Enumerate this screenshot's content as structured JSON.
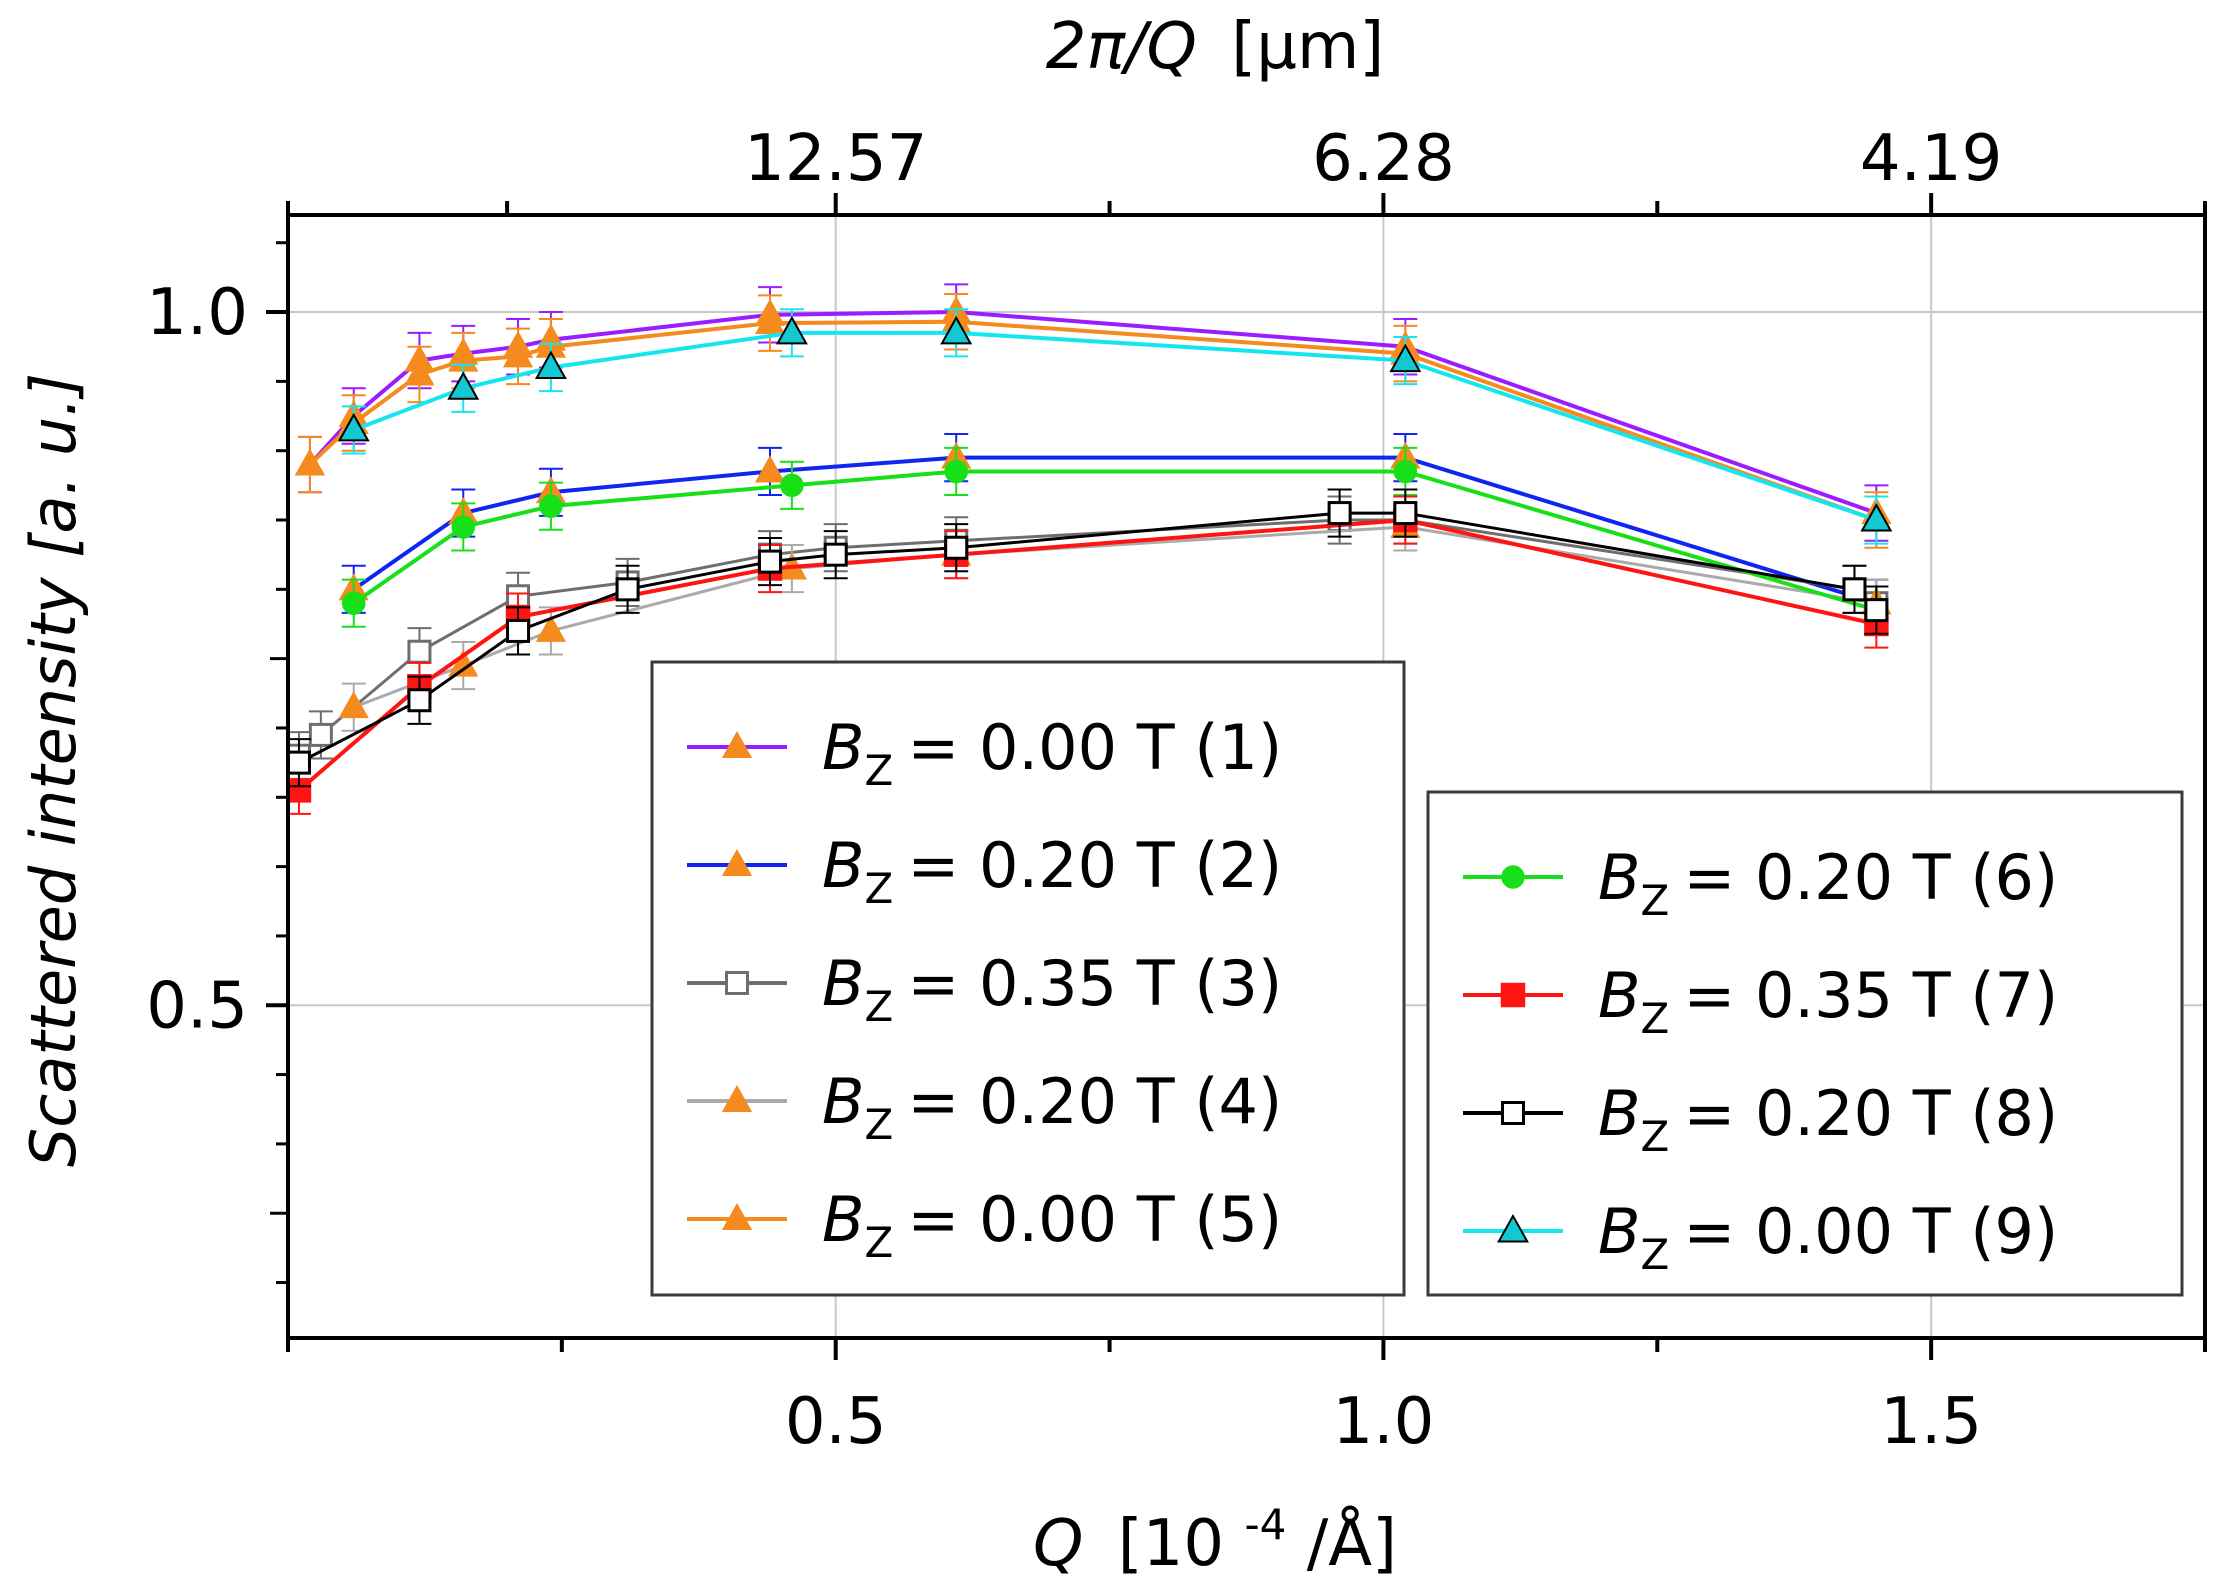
{
  "chart_data": {
    "type": "line",
    "x_top_label_var": "2π/Q",
    "x_top_label_unit": "[μm]",
    "x_bottom_label_var": "Q",
    "x_bottom_label_unit": "[10",
    "x_bottom_label_exp": "-4",
    "x_bottom_label_tail": "/Å]",
    "ylabel": "Scattered intensity [a. u.]",
    "xlim": [
      0.0,
      1.75
    ],
    "ylim": [
      0.26,
      1.07
    ],
    "y_ticks": [
      {
        "value": 1.0,
        "label": "1.0"
      },
      {
        "value": 0.5,
        "label": "0.5"
      }
    ],
    "x_ticks": [
      {
        "value": 0.5,
        "label": "0.5"
      },
      {
        "value": 1.0,
        "label": "1.0"
      },
      {
        "value": 1.5,
        "label": "1.5"
      }
    ],
    "x_top_ticks": [
      {
        "value": 0.5,
        "label": "12.57"
      },
      {
        "value": 1.0,
        "label": "6.28"
      },
      {
        "value": 1.5,
        "label": "4.19"
      }
    ],
    "grid": true,
    "legend_prefix": "B",
    "legend_subscript": "Z",
    "series": [
      {
        "name": "= 0.00 T (1)",
        "color": "#9a1cff",
        "marker": "triangle",
        "marker_fill": "#f58a1f",
        "x": [
          0.02,
          0.06,
          0.12,
          0.16,
          0.21,
          0.24,
          0.44,
          0.61,
          1.02,
          1.45
        ],
        "y": [
          0.89,
          0.925,
          0.965,
          0.97,
          0.975,
          0.98,
          0.998,
          1.0,
          0.975,
          0.855
        ],
        "err": 0.02
      },
      {
        "name": "= 0.20 T (2)",
        "color": "#1026f0",
        "marker": "triangle",
        "marker_fill": "#f58a1f",
        "x": [
          0.06,
          0.16,
          0.24,
          0.44,
          0.61,
          1.02,
          1.45
        ],
        "y": [
          0.8,
          0.855,
          0.87,
          0.885,
          0.895,
          0.895,
          0.79
        ],
        "err": 0.017
      },
      {
        "name": "= 0.35 T (3)",
        "color": "#6e6e6e",
        "marker": "square_open",
        "marker_fill": "#ffffff",
        "x": [
          0.01,
          0.03,
          0.12,
          0.21,
          0.31,
          0.44,
          0.5,
          0.61,
          0.96,
          1.02,
          1.43,
          1.45
        ],
        "y": [
          0.68,
          0.695,
          0.755,
          0.795,
          0.805,
          0.825,
          0.83,
          0.835,
          0.85,
          0.85,
          0.8,
          0.79
        ],
        "err": 0.017
      },
      {
        "name": "= 0.20 T (4)",
        "color": "#aaaaaa",
        "marker": "triangle",
        "marker_fill": "#f58a1f",
        "x": [
          0.06,
          0.16,
          0.24,
          0.46,
          0.61,
          1.02,
          1.45
        ],
        "y": [
          0.715,
          0.745,
          0.77,
          0.815,
          0.825,
          0.845,
          0.79
        ],
        "err": 0.017
      },
      {
        "name": "= 0.00 T (5)",
        "color": "#f58a1f",
        "marker": "triangle",
        "marker_fill": "#f58a1f",
        "x": [
          0.02,
          0.06,
          0.12,
          0.16,
          0.21,
          0.24,
          0.44,
          0.61,
          1.02,
          1.45
        ],
        "y": [
          0.89,
          0.92,
          0.955,
          0.965,
          0.968,
          0.975,
          0.992,
          0.993,
          0.97,
          0.85
        ],
        "err": 0.02
      },
      {
        "name": "= 0.20 T (6)",
        "color": "#18e018",
        "marker": "circle",
        "marker_fill": "#18e018",
        "x": [
          0.06,
          0.16,
          0.24,
          0.46,
          0.61,
          1.02,
          1.45
        ],
        "y": [
          0.79,
          0.845,
          0.86,
          0.875,
          0.885,
          0.885,
          0.785
        ],
        "err": 0.017
      },
      {
        "name": "= 0.35 T (7)",
        "color": "#ff1414",
        "marker": "square",
        "marker_fill": "#ff1414",
        "x": [
          0.01,
          0.12,
          0.21,
          0.44,
          0.61,
          1.02,
          1.45
        ],
        "y": [
          0.655,
          0.73,
          0.78,
          0.815,
          0.825,
          0.85,
          0.775
        ],
        "err": 0.017
      },
      {
        "name": "= 0.20 T (8)",
        "color": "#000000",
        "marker": "square_open",
        "marker_fill": "#ffffff",
        "x": [
          0.01,
          0.12,
          0.21,
          0.31,
          0.44,
          0.5,
          0.61,
          0.96,
          1.02,
          1.43,
          1.45
        ],
        "y": [
          0.675,
          0.72,
          0.77,
          0.8,
          0.82,
          0.825,
          0.83,
          0.855,
          0.855,
          0.8,
          0.785
        ],
        "err": 0.017
      },
      {
        "name": "= 0.00 T (9)",
        "color": "#14e6f0",
        "marker": "triangle",
        "marker_fill": "#14c8d2",
        "x": [
          0.06,
          0.16,
          0.24,
          0.46,
          0.61,
          1.02,
          1.45
        ],
        "y": [
          0.915,
          0.945,
          0.96,
          0.985,
          0.985,
          0.965,
          0.85
        ],
        "err": 0.017
      }
    ],
    "legend_groups": [
      [
        0,
        1,
        2,
        3,
        4
      ],
      [
        5,
        6,
        7,
        8
      ]
    ]
  }
}
